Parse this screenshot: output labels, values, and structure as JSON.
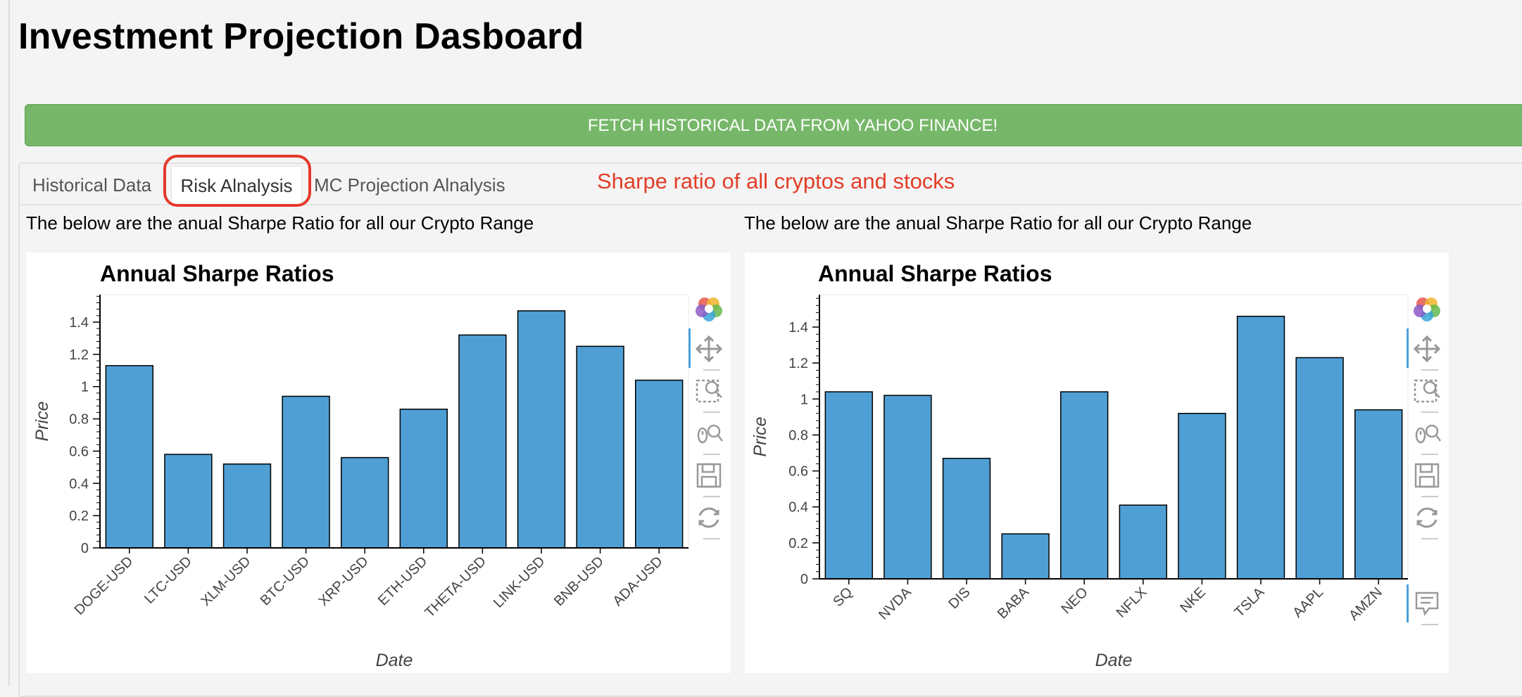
{
  "header": {
    "title": "Investment Projection Dasboard"
  },
  "fetch_button": {
    "label": "FETCH HISTORICAL DATA FROM YAHOO FINANCE!"
  },
  "tabs": [
    {
      "label": "Historical Data",
      "active": false
    },
    {
      "label": "Risk Alnalysis",
      "active": true
    },
    {
      "label": "MC Projection Alnalysis",
      "active": false
    }
  ],
  "annotation": {
    "text": "Sharpe ratio of all cryptos and stocks",
    "color": "#e23d28"
  },
  "panels": [
    {
      "caption": "The below are the anual Sharpe Ratio for all our Crypto Range"
    },
    {
      "caption": "The below are the anual Sharpe Ratio for all our Crypto Range"
    }
  ],
  "colors": {
    "bar_fill": "#4f9fd5",
    "button_green": "#76b769",
    "highlight_red": "#e5392a"
  },
  "toolbar_icons": [
    "bokeh-logo-icon",
    "pan-icon",
    "box-zoom-icon",
    "wheel-zoom-icon",
    "save-icon",
    "reset-icon",
    "hover-icon"
  ],
  "chart_data": [
    {
      "type": "bar",
      "title": "Annual Sharpe Ratios",
      "xlabel": "Date",
      "ylabel": "Price",
      "categories": [
        "DOGE-USD",
        "LTC-USD",
        "XLM-USD",
        "BTC-USD",
        "XRP-USD",
        "ETH-USD",
        "THETA-USD",
        "LINK-USD",
        "BNB-USD",
        "ADA-USD"
      ],
      "values": [
        1.13,
        0.58,
        0.52,
        0.94,
        0.56,
        0.86,
        1.32,
        1.47,
        1.25,
        1.04
      ],
      "ylim": [
        0,
        1.57
      ],
      "yticks": [
        0,
        0.2,
        0.4,
        0.6,
        0.8,
        1,
        1.2,
        1.4
      ],
      "ytick_labels": [
        "0",
        "0.2",
        "0.4",
        "0.6",
        "0.8",
        "1",
        "1.2",
        "1.4"
      ],
      "grid": false,
      "legend": "none"
    },
    {
      "type": "bar",
      "title": "Annual Sharpe Ratios",
      "xlabel": "Date",
      "ylabel": "Price",
      "categories": [
        "SQ",
        "NVDA",
        "DIS",
        "BABA",
        "NEO",
        "NFLX",
        "NKE",
        "TSLA",
        "AAPL",
        "AMZN"
      ],
      "values": [
        1.04,
        1.02,
        0.67,
        0.25,
        1.04,
        0.41,
        0.92,
        1.46,
        1.23,
        0.94
      ],
      "ylim": [
        0,
        1.58
      ],
      "yticks": [
        0,
        0.2,
        0.4,
        0.6,
        0.8,
        1,
        1.2,
        1.4
      ],
      "ytick_labels": [
        "0",
        "0.2",
        "0.4",
        "0.6",
        "0.8",
        "1",
        "1.2",
        "1.4"
      ],
      "grid": false,
      "legend": "none"
    }
  ]
}
